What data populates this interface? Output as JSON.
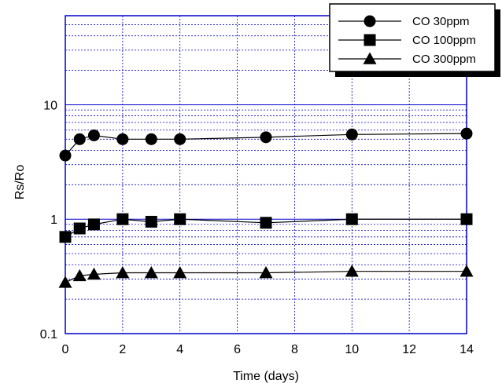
{
  "chart_data": {
    "type": "line",
    "title": "",
    "xlabel": "Time (days)",
    "ylabel": "Rs/Ro",
    "x_scale": "linear",
    "y_scale": "log",
    "xlim": [
      0,
      14
    ],
    "ylim": [
      0.1,
      60
    ],
    "x_ticks": [
      0,
      2,
      4,
      6,
      8,
      10,
      12,
      14
    ],
    "x_tick_labels": [
      "0",
      "2",
      "4",
      "6",
      "8",
      "10",
      "12",
      "14"
    ],
    "y_ticks": [
      0.1,
      1,
      10
    ],
    "y_tick_labels": [
      "0.1",
      "1",
      "10"
    ],
    "grid": true,
    "legend_position": "top-right",
    "series": [
      {
        "name": "CO 30ppm",
        "marker": "circle",
        "x": [
          0,
          0.5,
          1,
          2,
          3,
          4,
          7,
          10,
          14
        ],
        "y": [
          3.6,
          5.0,
          5.4,
          5.0,
          5.0,
          5.0,
          5.2,
          5.5,
          5.6
        ]
      },
      {
        "name": "CO 100ppm",
        "marker": "square",
        "x": [
          0,
          0.5,
          1,
          2,
          3,
          4,
          7,
          10,
          14
        ],
        "y": [
          0.7,
          0.83,
          0.9,
          1.0,
          0.95,
          1.0,
          0.93,
          1.0,
          1.0
        ]
      },
      {
        "name": "CO 300ppm",
        "marker": "triangle",
        "x": [
          0,
          0.5,
          1,
          2,
          3,
          4,
          7,
          10,
          14
        ],
        "y": [
          0.28,
          0.32,
          0.33,
          0.34,
          0.34,
          0.34,
          0.34,
          0.35,
          0.35
        ]
      }
    ],
    "colors": {
      "plot_border": "#0000cc",
      "grid": "#0000cc",
      "series": "#000000"
    }
  }
}
